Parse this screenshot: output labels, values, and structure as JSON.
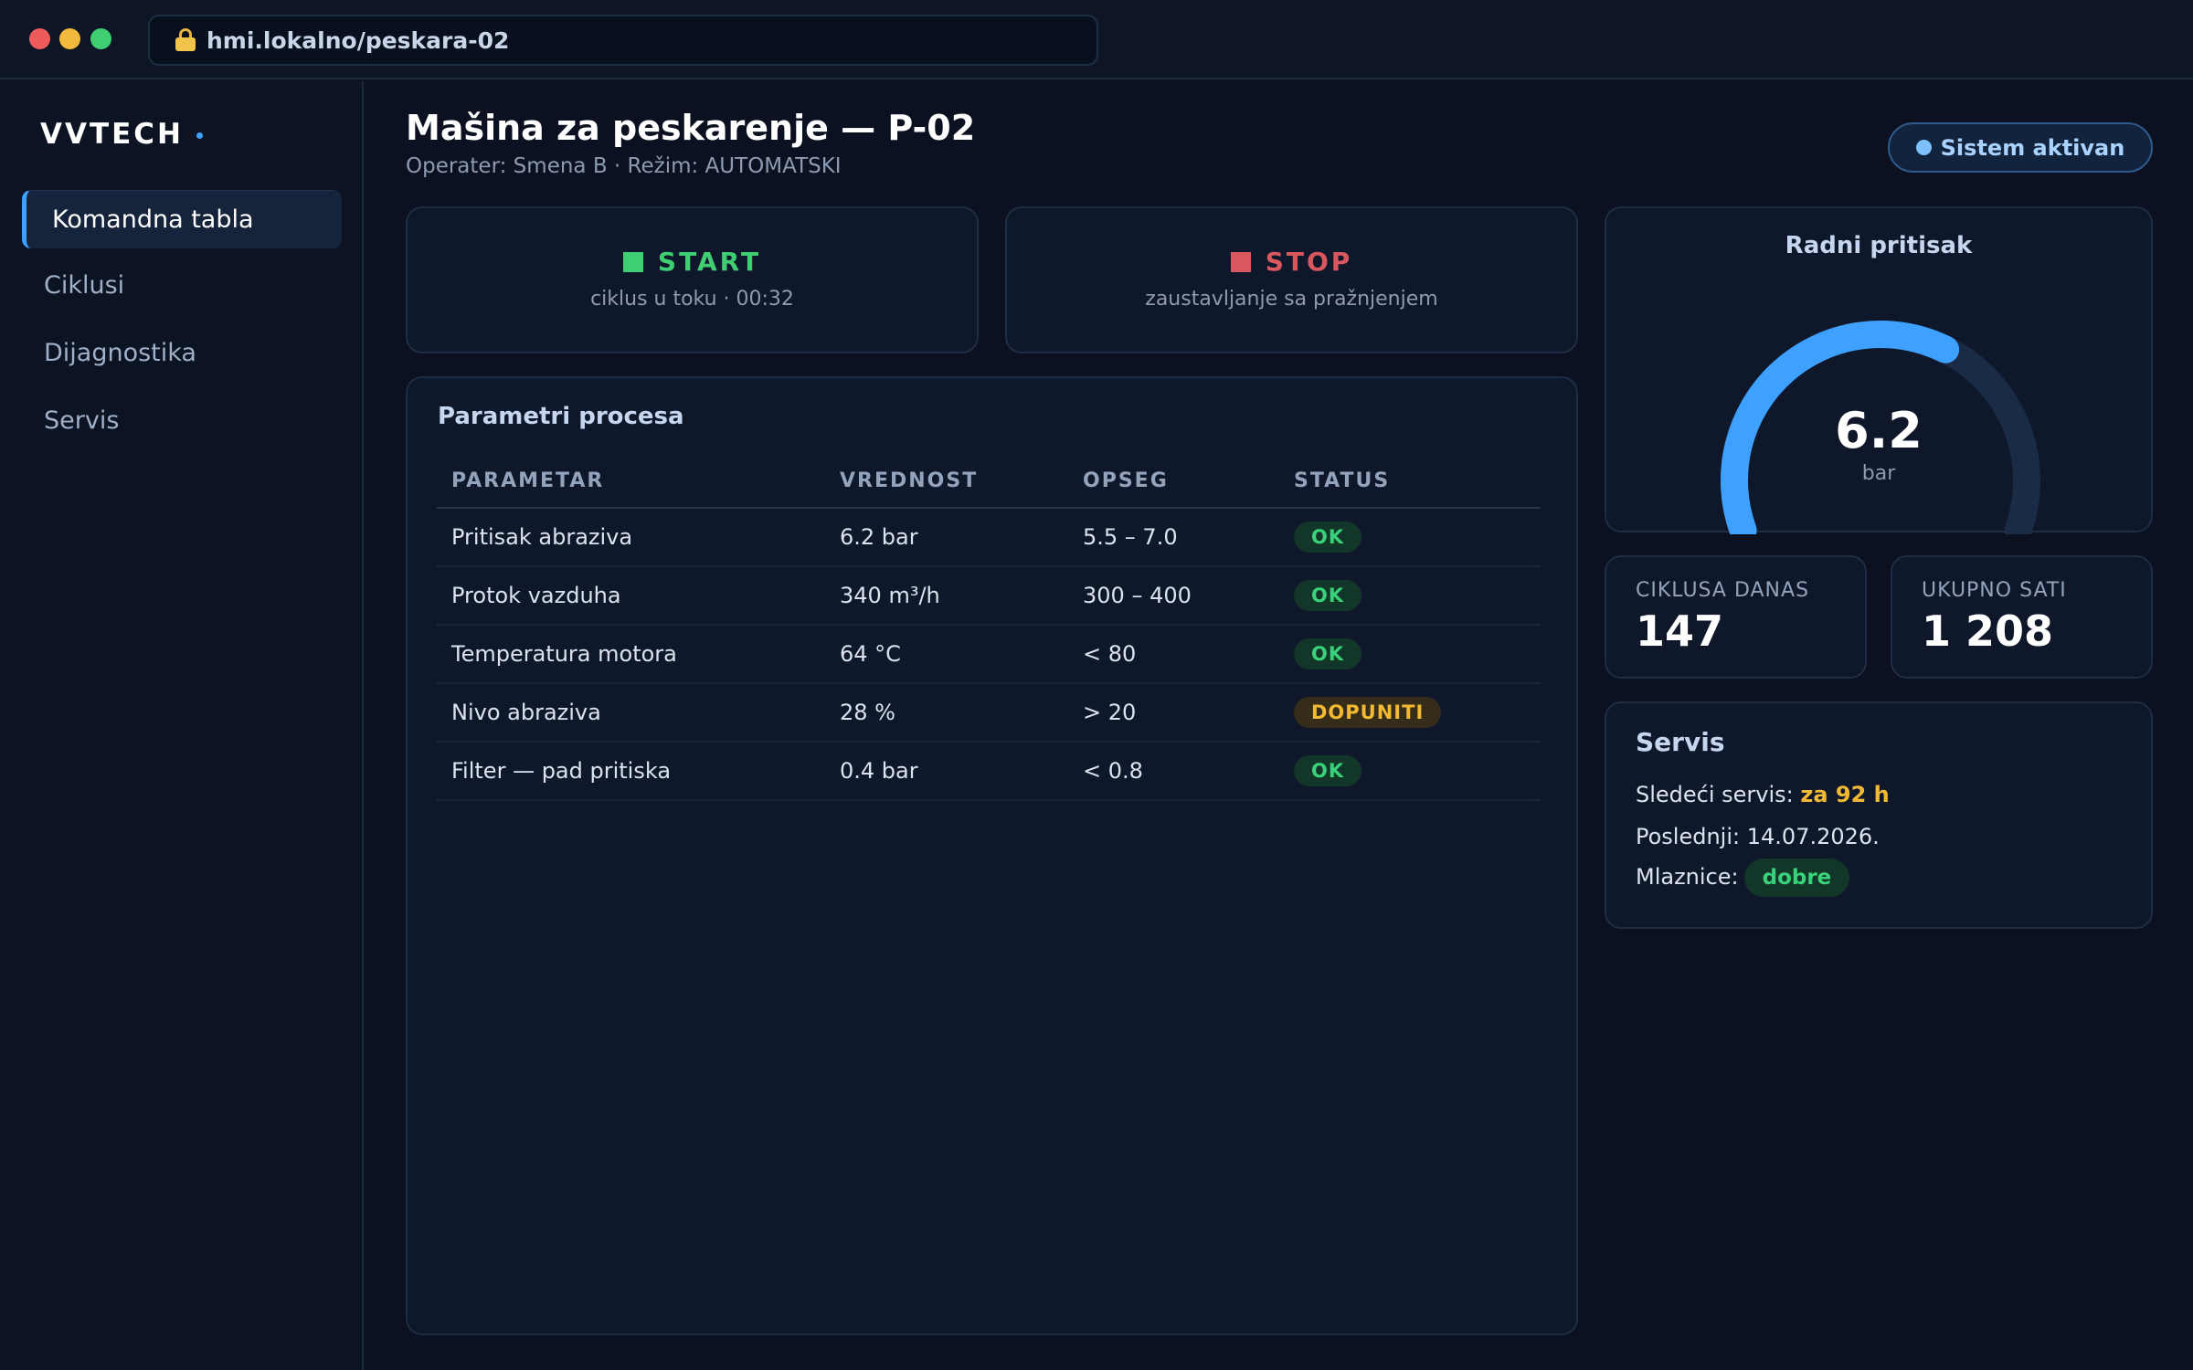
{
  "browser": {
    "url": "hmi.lokalno/peskara-02",
    "icon": "lock-icon"
  },
  "sidebar": {
    "brand": "VVTECH",
    "items": [
      {
        "label": "Komandna tabla",
        "active": true
      },
      {
        "label": "Ciklusi",
        "active": false
      },
      {
        "label": "Dijagnostika",
        "active": false
      },
      {
        "label": "Servis",
        "active": false
      }
    ]
  },
  "header": {
    "title": "Mašina za peskarenje — P-02",
    "subtitle": "Operater: Smena B · Režim: AUTOMATSKI",
    "status_badge": "Sistem aktivan"
  },
  "controls": {
    "start": {
      "label": "START",
      "sub": "ciklus u toku · 00:32",
      "color": "#3fcf72"
    },
    "stop": {
      "label": "STOP",
      "sub": "zaustavljanje sa pražnjenjem",
      "color": "#d9575e"
    }
  },
  "params": {
    "title": "Parametri procesa",
    "columns": [
      "PARAMETAR",
      "VREDNOST",
      "OPSEG",
      "STATUS"
    ],
    "rows": [
      {
        "name": "Pritisak abraziva",
        "value": "6.2 bar",
        "range": "5.5 – 7.0",
        "status": "OK",
        "level": "ok"
      },
      {
        "name": "Protok vazduha",
        "value": "340 m³/h",
        "range": "300 – 400",
        "status": "OK",
        "level": "ok"
      },
      {
        "name": "Temperatura motora",
        "value": "64 °C",
        "range": "< 80",
        "status": "OK",
        "level": "ok"
      },
      {
        "name": "Nivo abraziva",
        "value": "28 %",
        "range": "> 20",
        "status": "DOPUNITI",
        "level": "warn"
      },
      {
        "name": "Filter — pad pritiska",
        "value": "0.4 bar",
        "range": "< 0.8",
        "status": "OK",
        "level": "ok"
      }
    ]
  },
  "gauge": {
    "title": "Radni pritisak",
    "value": "6.2",
    "unit": "bar",
    "fraction": 0.62,
    "color": "#3ea1ff"
  },
  "stats": {
    "cycles_label": "CIKLUSA DANAS",
    "cycles_value": "147",
    "hours_label": "UKUPNO SATI",
    "hours_value": "1 208"
  },
  "service": {
    "title": "Servis",
    "next_label": "Sledeći servis:",
    "next_value": "za 92 h",
    "last_label": "Poslednji:",
    "last_value": "14.07.2026.",
    "nozzles_label": "Mlaznice:",
    "nozzles_value": "dobre"
  }
}
